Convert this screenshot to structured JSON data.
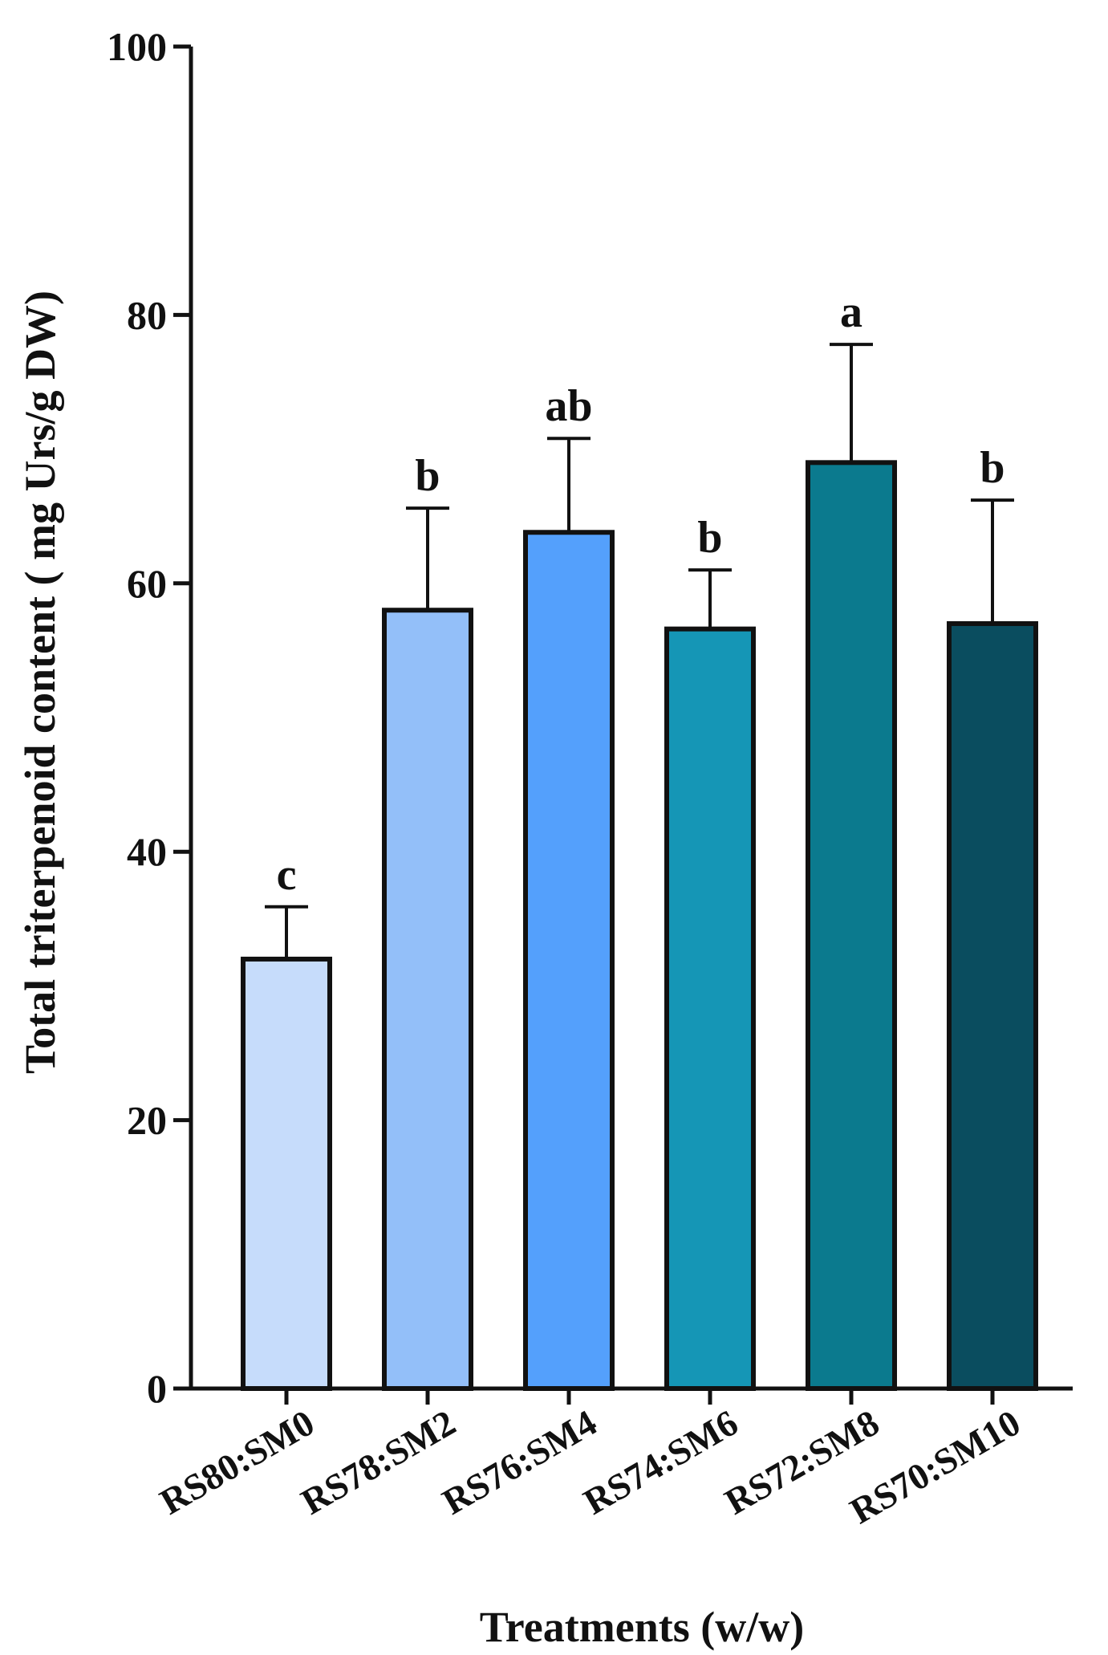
{
  "chart_data": {
    "type": "bar",
    "xlabel": "Treatments (w/w)",
    "ylabel": "Total triterpenoid content ( mg Urs/g DW)",
    "ylim": [
      0,
      100
    ],
    "yticks": [
      0,
      20,
      40,
      60,
      80,
      100
    ],
    "grid": false,
    "categories": [
      "RS80:SM0",
      "RS78:SM2",
      "RS76:SM4",
      "RS74:SM6",
      "RS72:SM8",
      "RS70:SM10"
    ],
    "values": [
      32.0,
      58.0,
      63.8,
      56.6,
      69.0,
      57.0
    ],
    "errors": [
      3.9,
      7.6,
      7.0,
      4.4,
      8.8,
      9.2
    ],
    "significance_labels": [
      "c",
      "b",
      "ab",
      "b",
      "a",
      "b"
    ],
    "colors": [
      "#c6dcfb",
      "#93bff9",
      "#54a0fc",
      "#1596b6",
      "#0b7a8e",
      "#0a4d5f"
    ]
  }
}
